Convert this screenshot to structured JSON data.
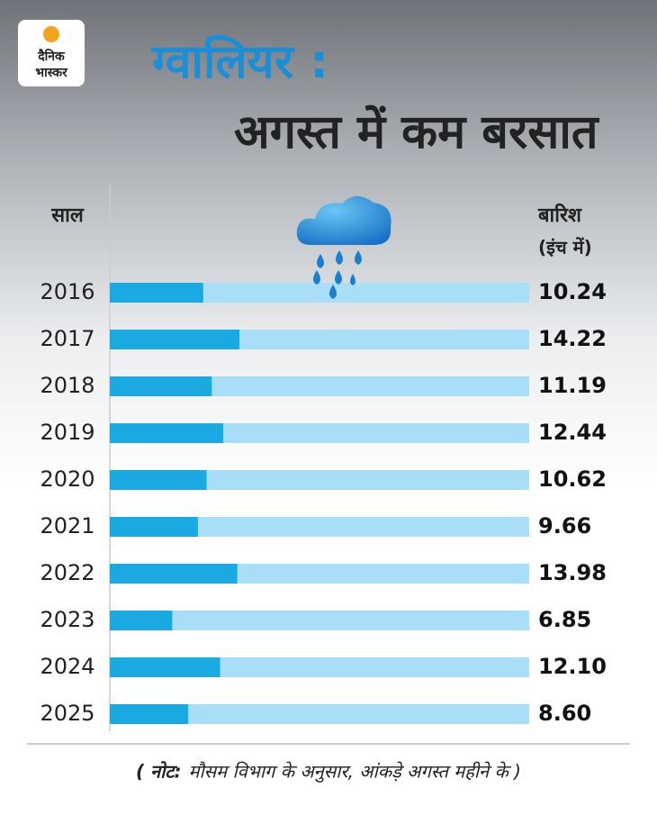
{
  "logo": {
    "line1": "दैनिक",
    "line2": "भास्कर"
  },
  "chart_data": {
    "type": "bar",
    "orientation": "horizontal",
    "title_highlight": "ग्वालियर :",
    "title": "अगस्त में कम बरसात",
    "category_header": "साल",
    "value_header": "बारिश",
    "value_unit": "(इंच में)",
    "categories": [
      "2016",
      "2017",
      "2018",
      "2019",
      "2020",
      "2021",
      "2022",
      "2023",
      "2024",
      "2025"
    ],
    "values": [
      10.24,
      14.22,
      11.19,
      12.44,
      10.62,
      9.66,
      13.98,
      6.85,
      12.1,
      8.6
    ],
    "value_labels": [
      "10.24",
      "14.22",
      "11.19",
      "12.44",
      "10.62",
      "9.66",
      "13.98",
      "6.85",
      "12.10",
      "8.60"
    ],
    "color": "#1aa9e0",
    "track_color": "#a8def7",
    "title_color": "#1a8fd8",
    "xlim": [
      0,
      46
    ],
    "note_label": "( नोट:",
    "note": "मौसम विभाग के अनुसार, आंकड़े अगस्त महीने के )"
  }
}
